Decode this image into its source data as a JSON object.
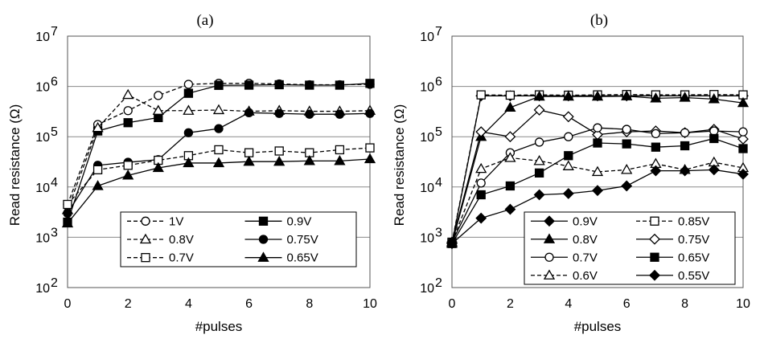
{
  "chart_data": [
    {
      "type": "line",
      "title": "(a)",
      "xlabel": "#pulses",
      "ylabel": "Read resistance (Ω)",
      "xlim": [
        0,
        10
      ],
      "xticks": [
        "0",
        "2",
        "4",
        "6",
        "8",
        "10"
      ],
      "ylim_log10": [
        2,
        7
      ],
      "yticks": [
        {
          "base": "10",
          "exp": "2"
        },
        {
          "base": "10",
          "exp": "3"
        },
        {
          "base": "10",
          "exp": "4"
        },
        {
          "base": "10",
          "exp": "5"
        },
        {
          "base": "10",
          "exp": "6"
        },
        {
          "base": "10",
          "exp": "7"
        }
      ],
      "grid": "horizontal",
      "legend": "bottom-right",
      "series": [
        {
          "name": "1V",
          "marker": "circle",
          "filled": false,
          "dashed": true,
          "values": [
            4500,
            175000,
            330000,
            660000,
            1100000,
            1150000,
            1150000,
            1120000,
            1080000,
            1080000,
            1100000
          ]
        },
        {
          "name": "0.9V",
          "marker": "square",
          "filled": true,
          "dashed": false,
          "values": [
            2000,
            130000,
            190000,
            240000,
            730000,
            1050000,
            1060000,
            1080000,
            1060000,
            1060000,
            1150000
          ]
        },
        {
          "name": "0.8V",
          "marker": "triangle",
          "filled": false,
          "dashed": true,
          "values": [
            3500,
            150000,
            680000,
            330000,
            330000,
            340000,
            320000,
            330000,
            320000,
            320000,
            330000
          ]
        },
        {
          "name": "0.75V",
          "marker": "circle",
          "filled": true,
          "dashed": false,
          "values": [
            3000,
            27000,
            31000,
            35000,
            120000,
            145000,
            300000,
            290000,
            280000,
            280000,
            290000
          ]
        },
        {
          "name": "0.7V",
          "marker": "square",
          "filled": false,
          "dashed": true,
          "values": [
            4500,
            22000,
            27000,
            34000,
            42000,
            55000,
            48000,
            52000,
            48000,
            55000,
            60000
          ]
        },
        {
          "name": "0.65V",
          "marker": "triangle",
          "filled": true,
          "dashed": false,
          "values": [
            1900,
            10500,
            17000,
            24000,
            30000,
            30000,
            32000,
            32000,
            33000,
            33000,
            36000
          ]
        }
      ]
    },
    {
      "type": "line",
      "title": "(b)",
      "xlabel": "#pulses",
      "ylabel": "Read resistance (Ω)",
      "xlim": [
        0,
        10
      ],
      "xticks": [
        "0",
        "2",
        "4",
        "6",
        "8",
        "10"
      ],
      "ylim_log10": [
        2,
        7
      ],
      "yticks": [
        {
          "base": "10",
          "exp": "2"
        },
        {
          "base": "10",
          "exp": "3"
        },
        {
          "base": "10",
          "exp": "4"
        },
        {
          "base": "10",
          "exp": "5"
        },
        {
          "base": "10",
          "exp": "6"
        },
        {
          "base": "10",
          "exp": "7"
        }
      ],
      "grid": "horizontal",
      "legend": "bottom-right",
      "series": [
        {
          "name": "0.9V",
          "marker": "diamond",
          "filled": true,
          "dashed": false,
          "values": [
            750,
            650000,
            650000,
            650000,
            650000,
            650000,
            650000,
            650000,
            650000,
            650000,
            650000
          ]
        },
        {
          "name": "0.85V",
          "marker": "square",
          "filled": false,
          "dashed": true,
          "values": [
            800,
            680000,
            670000,
            680000,
            670000,
            680000,
            690000,
            680000,
            680000,
            690000,
            680000
          ]
        },
        {
          "name": "0.8V",
          "marker": "triangle",
          "filled": true,
          "dashed": false,
          "values": [
            750,
            100000,
            380000,
            630000,
            630000,
            630000,
            640000,
            580000,
            600000,
            560000,
            470000
          ]
        },
        {
          "name": "0.75V",
          "marker": "diamond",
          "filled": false,
          "dashed": false,
          "values": [
            800,
            125000,
            100000,
            340000,
            250000,
            110000,
            125000,
            130000,
            120000,
            140000,
            90000
          ]
        },
        {
          "name": "0.7V",
          "marker": "circle",
          "filled": false,
          "dashed": false,
          "values": [
            800,
            12000,
            48000,
            78000,
            100000,
            150000,
            140000,
            115000,
            120000,
            130000,
            125000
          ]
        },
        {
          "name": "0.65V",
          "marker": "square",
          "filled": true,
          "dashed": false,
          "values": [
            750,
            7000,
            10500,
            19000,
            42000,
            75000,
            72000,
            62000,
            66000,
            92000,
            58000
          ]
        },
        {
          "name": "0.6V",
          "marker": "triangle",
          "filled": false,
          "dashed": true,
          "values": [
            800,
            23000,
            38000,
            33000,
            26000,
            20000,
            22000,
            29000,
            22000,
            31000,
            24000
          ]
        },
        {
          "name": "0.55V",
          "marker": "diamond",
          "filled": true,
          "dashed": false,
          "values": [
            750,
            2400,
            3600,
            7000,
            7400,
            8500,
            10500,
            21000,
            21000,
            22000,
            18000
          ]
        }
      ]
    }
  ]
}
